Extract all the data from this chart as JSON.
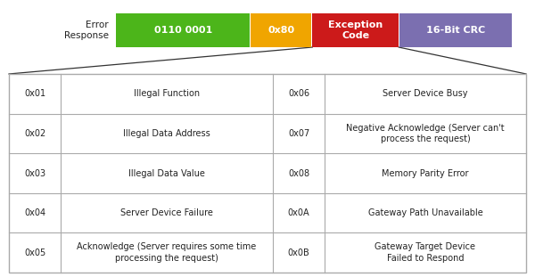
{
  "bg_color": "#ffffff",
  "header_blocks": [
    {
      "label": "0110 0001",
      "color": "#4cb51a",
      "text_color": "#ffffff"
    },
    {
      "label": "0x80",
      "color": "#f0a500",
      "text_color": "#ffffff"
    },
    {
      "label": "Exception\nCode",
      "color": "#cc1a1a",
      "text_color": "#ffffff"
    },
    {
      "label": "16-Bit CRC",
      "color": "#7b6fb0",
      "text_color": "#ffffff"
    }
  ],
  "header_label": "Error\nResponse",
  "table_rows": [
    [
      "0x01",
      "Illegal Function",
      "0x06",
      "Server Device Busy"
    ],
    [
      "0x02",
      "Illegal Data Address",
      "0x07",
      "Negative Acknowledge (Server can't\nprocess the request)"
    ],
    [
      "0x03",
      "Illegal Data Value",
      "0x08",
      "Memory Parity Error"
    ],
    [
      "0x04",
      "Server Device Failure",
      "0x0A",
      "Gateway Path Unavailable"
    ],
    [
      "0x05",
      "Acknowledge (Server requires some time\nprocessing the request)",
      "0x0B",
      "Gateway Target Device\nFailed to Respond"
    ]
  ],
  "table_font_size": 7.0,
  "header_font_size": 8.0,
  "label_font_size": 7.5,
  "border_color": "#aaaaaa",
  "line_color": "#333333"
}
